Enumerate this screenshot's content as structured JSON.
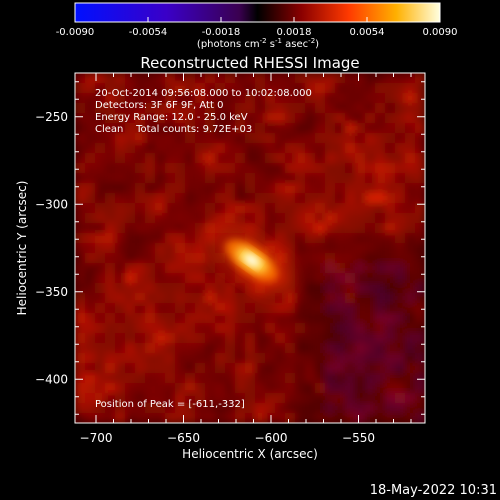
{
  "colorbar": {
    "ticks": [
      "-0.0090",
      "-0.0054",
      "-0.0018",
      "0.0018",
      "0.0054",
      "0.0090"
    ],
    "unit_label_a": "(photons cm",
    "unit_sup_a": "-2",
    "unit_label_b": " s",
    "unit_sup_b": "-1",
    "unit_label_c": " asec",
    "unit_sup_c": "-2",
    "unit_label_d": ")"
  },
  "chart_data": {
    "type": "heatmap",
    "title": "Reconstructed RHESSI Image",
    "xlabel": "Heliocentric X (arcsec)",
    "ylabel": "Heliocentric Y (arcsec)",
    "xlim": [
      -712,
      -512
    ],
    "ylim": [
      -425,
      -225
    ],
    "x_ticks": [
      -700,
      -650,
      -600,
      -550
    ],
    "y_ticks": [
      -250,
      -300,
      -350,
      -400
    ],
    "x_tick_labels": [
      "−700",
      "−650",
      "−600",
      "−550"
    ],
    "y_tick_labels": [
      "−250",
      "−300",
      "−350",
      "−400"
    ],
    "colorbar_range": [
      -0.009,
      0.009
    ],
    "colormap": "black-red-orange-yellow-white (RHESSI intensity)",
    "peak": {
      "x": -611,
      "y": -332
    },
    "annotations": [
      "20-Oct-2014 09:56:08.000 to 10:02:08.000",
      "Detectors: 3F 6F 9F, Att 0",
      "Energy Range: 12.0 - 25.0 keV",
      "Clean    Total counts: 9.72E+03",
      "Position of Peak = [-611,-332]"
    ]
  },
  "footer_date": "18-May-2022 10:31"
}
